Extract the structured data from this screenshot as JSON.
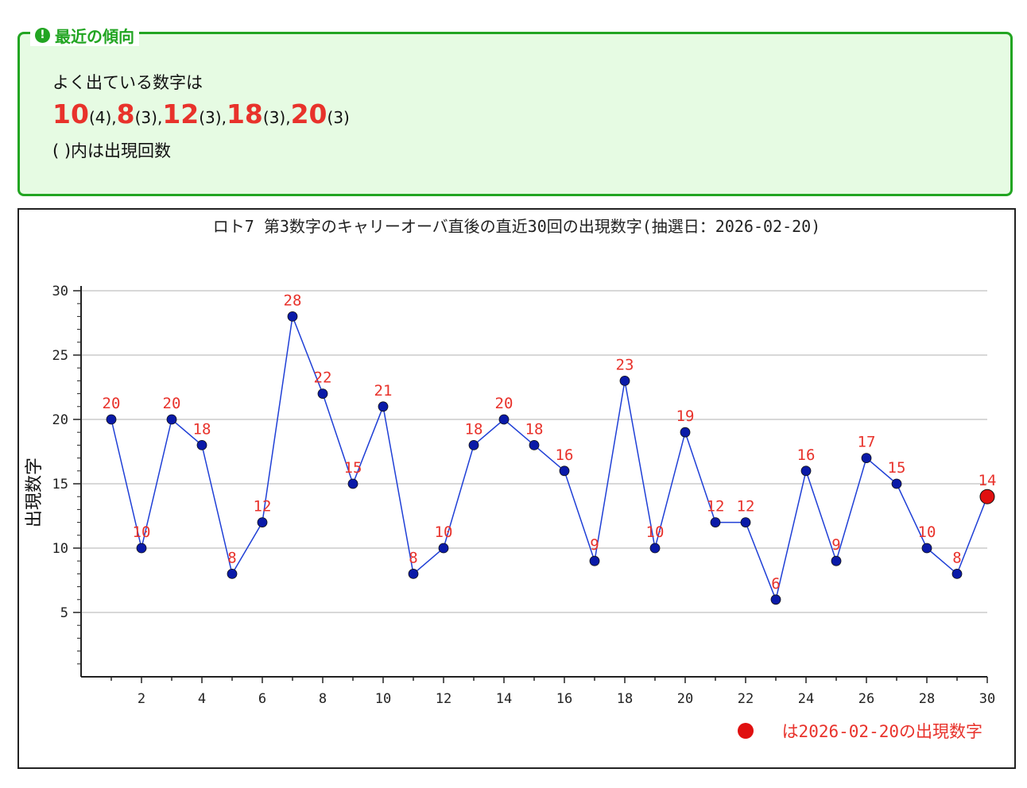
{
  "trend": {
    "title": "最近の傾向",
    "icon": "alert-icon",
    "line1": "よく出ている数字は",
    "numbers": [
      {
        "value": "10",
        "count": "(4)"
      },
      {
        "value": "8",
        "count": "(3)"
      },
      {
        "value": "12",
        "count": "(3)"
      },
      {
        "value": "18",
        "count": "(3)"
      },
      {
        "value": "20",
        "count": "(3)"
      }
    ],
    "separator": ",",
    "note": "( )内は出現回数",
    "colors": {
      "accent": "#22a522",
      "background": "#e6fbe3",
      "highlight": "#e8322b"
    }
  },
  "chart_data": {
    "type": "line",
    "title": "ロト7 第3数字のキャリーオーバ直後の直近30回の出現数字(抽選日：2026-02-20)",
    "xlabel": "",
    "ylabel": "出現数字",
    "x": [
      1,
      2,
      3,
      4,
      5,
      6,
      7,
      8,
      9,
      10,
      11,
      12,
      13,
      14,
      15,
      16,
      17,
      18,
      19,
      20,
      21,
      22,
      23,
      24,
      25,
      26,
      27,
      28,
      29,
      30
    ],
    "values": [
      20,
      10,
      20,
      18,
      8,
      12,
      28,
      22,
      15,
      21,
      8,
      10,
      18,
      20,
      18,
      16,
      9,
      23,
      10,
      19,
      12,
      12,
      6,
      16,
      9,
      17,
      15,
      10,
      8,
      14
    ],
    "xlim": [
      0,
      30
    ],
    "ylim": [
      0,
      30
    ],
    "xticks": [
      2,
      4,
      6,
      8,
      10,
      12,
      14,
      16,
      18,
      20,
      22,
      24,
      26,
      28,
      30
    ],
    "yticks": [
      5,
      10,
      15,
      20,
      25,
      30
    ],
    "grid": true,
    "highlight_index": 29,
    "legend": "●は2026-02-20の出現数字",
    "legend_position": "bottom-right",
    "colors": {
      "line": "#1f3fd6",
      "marker": "#0a1aa8",
      "label": "#e8322b",
      "highlight": "#e01010",
      "grid": "#cccccc"
    }
  }
}
